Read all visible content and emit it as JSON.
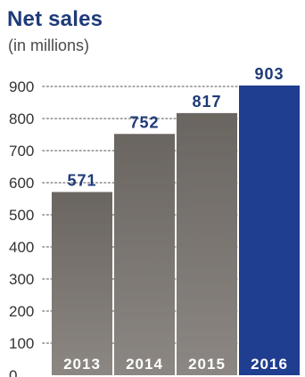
{
  "colors": {
    "title": "#1e3a78",
    "subtitle": "#4a4a4a",
    "axis_text": "#333333",
    "gridline": "#8a8a8a",
    "bar_gray_top": "#6a6560",
    "bar_gray_bottom": "#8c8782",
    "bar_highlight": "#1f3e8f",
    "value_label": "#1e3a78",
    "category_label": "#ffffff",
    "background": "#ffffff"
  },
  "chart_data": {
    "type": "bar",
    "title": "Net sales",
    "subtitle": "(in millions)",
    "categories": [
      "2013",
      "2014",
      "2015",
      "2016"
    ],
    "values": [
      571,
      752,
      817,
      903
    ],
    "value_labels": [
      "571",
      "752",
      "817",
      "903"
    ],
    "highlight_category": "2016",
    "xlabel": "",
    "ylabel": "",
    "ylim": [
      0,
      900
    ],
    "yticks": [
      0,
      100,
      200,
      300,
      400,
      500,
      600,
      700,
      800,
      900
    ],
    "ytick_labels": [
      "0",
      "100",
      "200",
      "300",
      "400",
      "500",
      "600",
      "700",
      "800",
      "900"
    ],
    "grid": true,
    "grid_style": "dotted",
    "legend": "none"
  }
}
